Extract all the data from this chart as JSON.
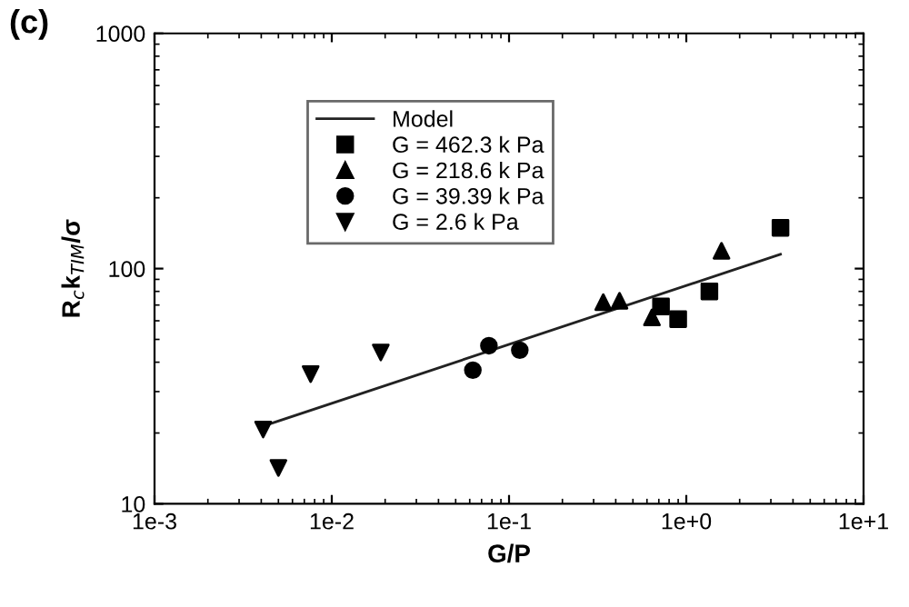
{
  "chart_data": {
    "type": "scatter",
    "title": "(c)",
    "xlabel": "G/P",
    "ylabel": "R$_{c}$k$_{TIM}$/σ",
    "log": "xy",
    "xlim": [
      0.001,
      10
    ],
    "ylim": [
      10,
      1000
    ],
    "xticks": [
      {
        "value": 0.001,
        "label": "1e-3"
      },
      {
        "value": 0.01,
        "label": "1e-2"
      },
      {
        "value": 0.1,
        "label": "1e-1"
      },
      {
        "value": 1,
        "label": "1e+0"
      },
      {
        "value": 10,
        "label": "1e+1"
      }
    ],
    "yticks": [
      10,
      100,
      1000
    ],
    "grid": false,
    "legend": "top left",
    "series": [
      {
        "name": "Model",
        "type": "line",
        "color": "#222222",
        "marker": "none",
        "line_style": "solid",
        "x": [
          0.0041,
          3.4
        ],
        "values": [
          21.4,
          115
        ]
      },
      {
        "name": "G = 462.3 k Pa",
        "color": "#000000",
        "marker": "square",
        "x": [
          3.4,
          0.72,
          0.9,
          1.35
        ],
        "values": [
          149,
          69,
          61,
          80
        ]
      },
      {
        "name": "G = 218.6 k Pa",
        "color": "#000000",
        "marker": "triangle",
        "x": [
          0.34,
          0.42,
          0.64,
          1.58
        ],
        "values": [
          72,
          73,
          62,
          119
        ]
      },
      {
        "name": "G = 39.39 k Pa",
        "color": "#000000",
        "marker": "circle",
        "x": [
          0.0625,
          0.077,
          0.115
        ],
        "values": [
          37,
          47,
          45
        ]
      },
      {
        "name": "G = 2.6 k Pa",
        "color": "#000000",
        "marker": "triangle_down",
        "x": [
          0.0041,
          0.005,
          0.0076,
          0.0189
        ],
        "values": [
          20.7,
          14.2,
          35.6,
          44
        ]
      }
    ]
  }
}
